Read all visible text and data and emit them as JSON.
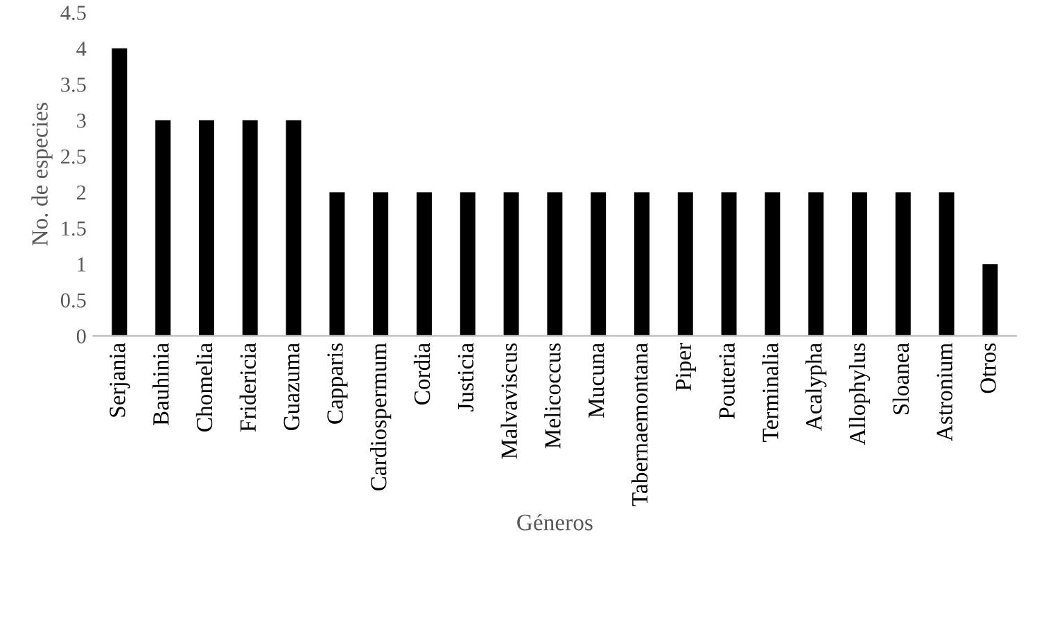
{
  "chart_data": {
    "type": "bar",
    "xlabel": "Géneros",
    "ylabel": "No. de especies",
    "categories": [
      "Serjania",
      "Bauhinia",
      "Chomelia",
      "Fridericia",
      "Guazuma",
      "Capparis",
      "Cardiospermum",
      "Cordia",
      "Justicia",
      "Malvaviscus",
      "Melicoccus",
      "Mucuna",
      "Tabernaemontana",
      "Piper",
      "Pouteria",
      "Terminalia",
      "Acalypha",
      "Allophylus",
      "Sloanea",
      "Astronium",
      "Otros"
    ],
    "values": [
      4,
      3,
      3,
      3,
      3,
      2,
      2,
      2,
      2,
      2,
      2,
      2,
      2,
      2,
      2,
      2,
      2,
      2,
      2,
      2,
      1
    ],
    "color": "#000000",
    "ylim": [
      0,
      4.5
    ],
    "yticks": [
      0,
      0.5,
      1,
      1.5,
      2,
      2.5,
      3,
      3.5,
      4,
      4.5
    ],
    "grid": false,
    "legend": false
  }
}
